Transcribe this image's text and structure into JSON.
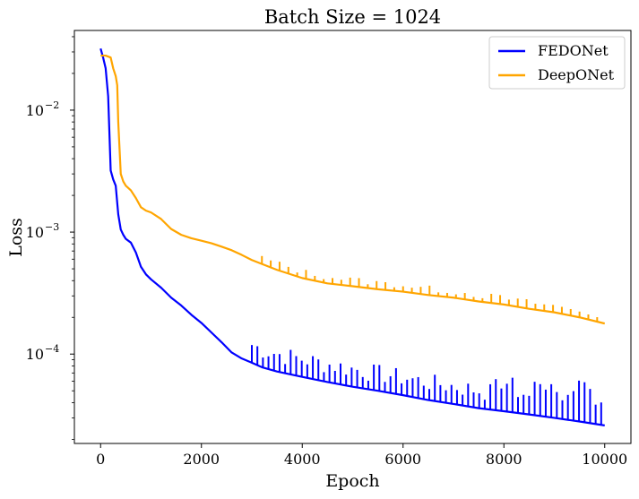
{
  "chart_data": {
    "type": "line",
    "title": "Batch Size = 1024",
    "xlabel": "Epoch",
    "ylabel": "Loss",
    "y_scale": "log",
    "xlim": [
      -520,
      10520
    ],
    "ylim": [
      1.85e-05,
      0.045
    ],
    "x_ticks": [
      {
        "value": 0,
        "label": "0"
      },
      {
        "value": 2000,
        "label": "2000"
      },
      {
        "value": 4000,
        "label": "4000"
      },
      {
        "value": 6000,
        "label": "6000"
      },
      {
        "value": 8000,
        "label": "8000"
      },
      {
        "value": 10000,
        "label": "10000"
      }
    ],
    "y_ticks": [
      {
        "value": 0.01,
        "base": "10",
        "exp": "−2"
      },
      {
        "value": 0.001,
        "base": "10",
        "exp": "−3"
      },
      {
        "value": 0.0001,
        "base": "10",
        "exp": "−4"
      }
    ],
    "grid": false,
    "legend": {
      "position": "top-right"
    },
    "series": [
      {
        "name": "FEDONet",
        "color": "#0000ff",
        "x": [
          0,
          50,
          100,
          150,
          200,
          250,
          300,
          350,
          400,
          450,
          500,
          600,
          700,
          800,
          900,
          1000,
          1200,
          1400,
          1600,
          1800,
          2000,
          2200,
          2400,
          2600,
          2800,
          3000,
          3200,
          3500,
          4000,
          4500,
          5000,
          5500,
          6000,
          6500,
          7000,
          7500,
          8000,
          8500,
          9000,
          9500,
          10000
        ],
        "y": [
          0.032,
          0.027,
          0.022,
          0.013,
          0.0032,
          0.0027,
          0.0024,
          0.0014,
          0.00105,
          0.00095,
          0.00088,
          0.00082,
          0.00068,
          0.00052,
          0.00045,
          0.00041,
          0.00035,
          0.00029,
          0.00025,
          0.00021,
          0.00018,
          0.00015,
          0.000125,
          0.000103,
          9.2e-05,
          8.5e-05,
          7.8e-05,
          7.2e-05,
          6.5e-05,
          5.9e-05,
          5.4e-05,
          5e-05,
          4.6e-05,
          4.2e-05,
          3.9e-05,
          3.6e-05,
          3.4e-05,
          3.2e-05,
          3e-05,
          2.8e-05,
          2.6e-05
        ]
      },
      {
        "name": "DeepONet",
        "color": "#ffa500",
        "x": [
          0,
          100,
          200,
          250,
          300,
          330,
          350,
          400,
          450,
          500,
          600,
          700,
          800,
          900,
          1000,
          1200,
          1400,
          1600,
          1800,
          2000,
          2200,
          2400,
          2600,
          2800,
          3000,
          3500,
          4000,
          4500,
          5000,
          5500,
          6000,
          6500,
          7000,
          7500,
          8000,
          8500,
          9000,
          9500,
          10000
        ],
        "y": [
          0.028,
          0.028,
          0.027,
          0.022,
          0.019,
          0.016,
          0.008,
          0.003,
          0.0026,
          0.0024,
          0.0022,
          0.0019,
          0.0016,
          0.0015,
          0.00145,
          0.00128,
          0.00106,
          0.00095,
          0.00089,
          0.00085,
          0.00081,
          0.00076,
          0.00071,
          0.00065,
          0.00059,
          0.00049,
          0.00042,
          0.00038,
          0.00036,
          0.00034,
          0.000325,
          0.000305,
          0.00029,
          0.00027,
          0.000255,
          0.000235,
          0.00022,
          0.0002,
          0.000178
        ]
      }
    ]
  }
}
